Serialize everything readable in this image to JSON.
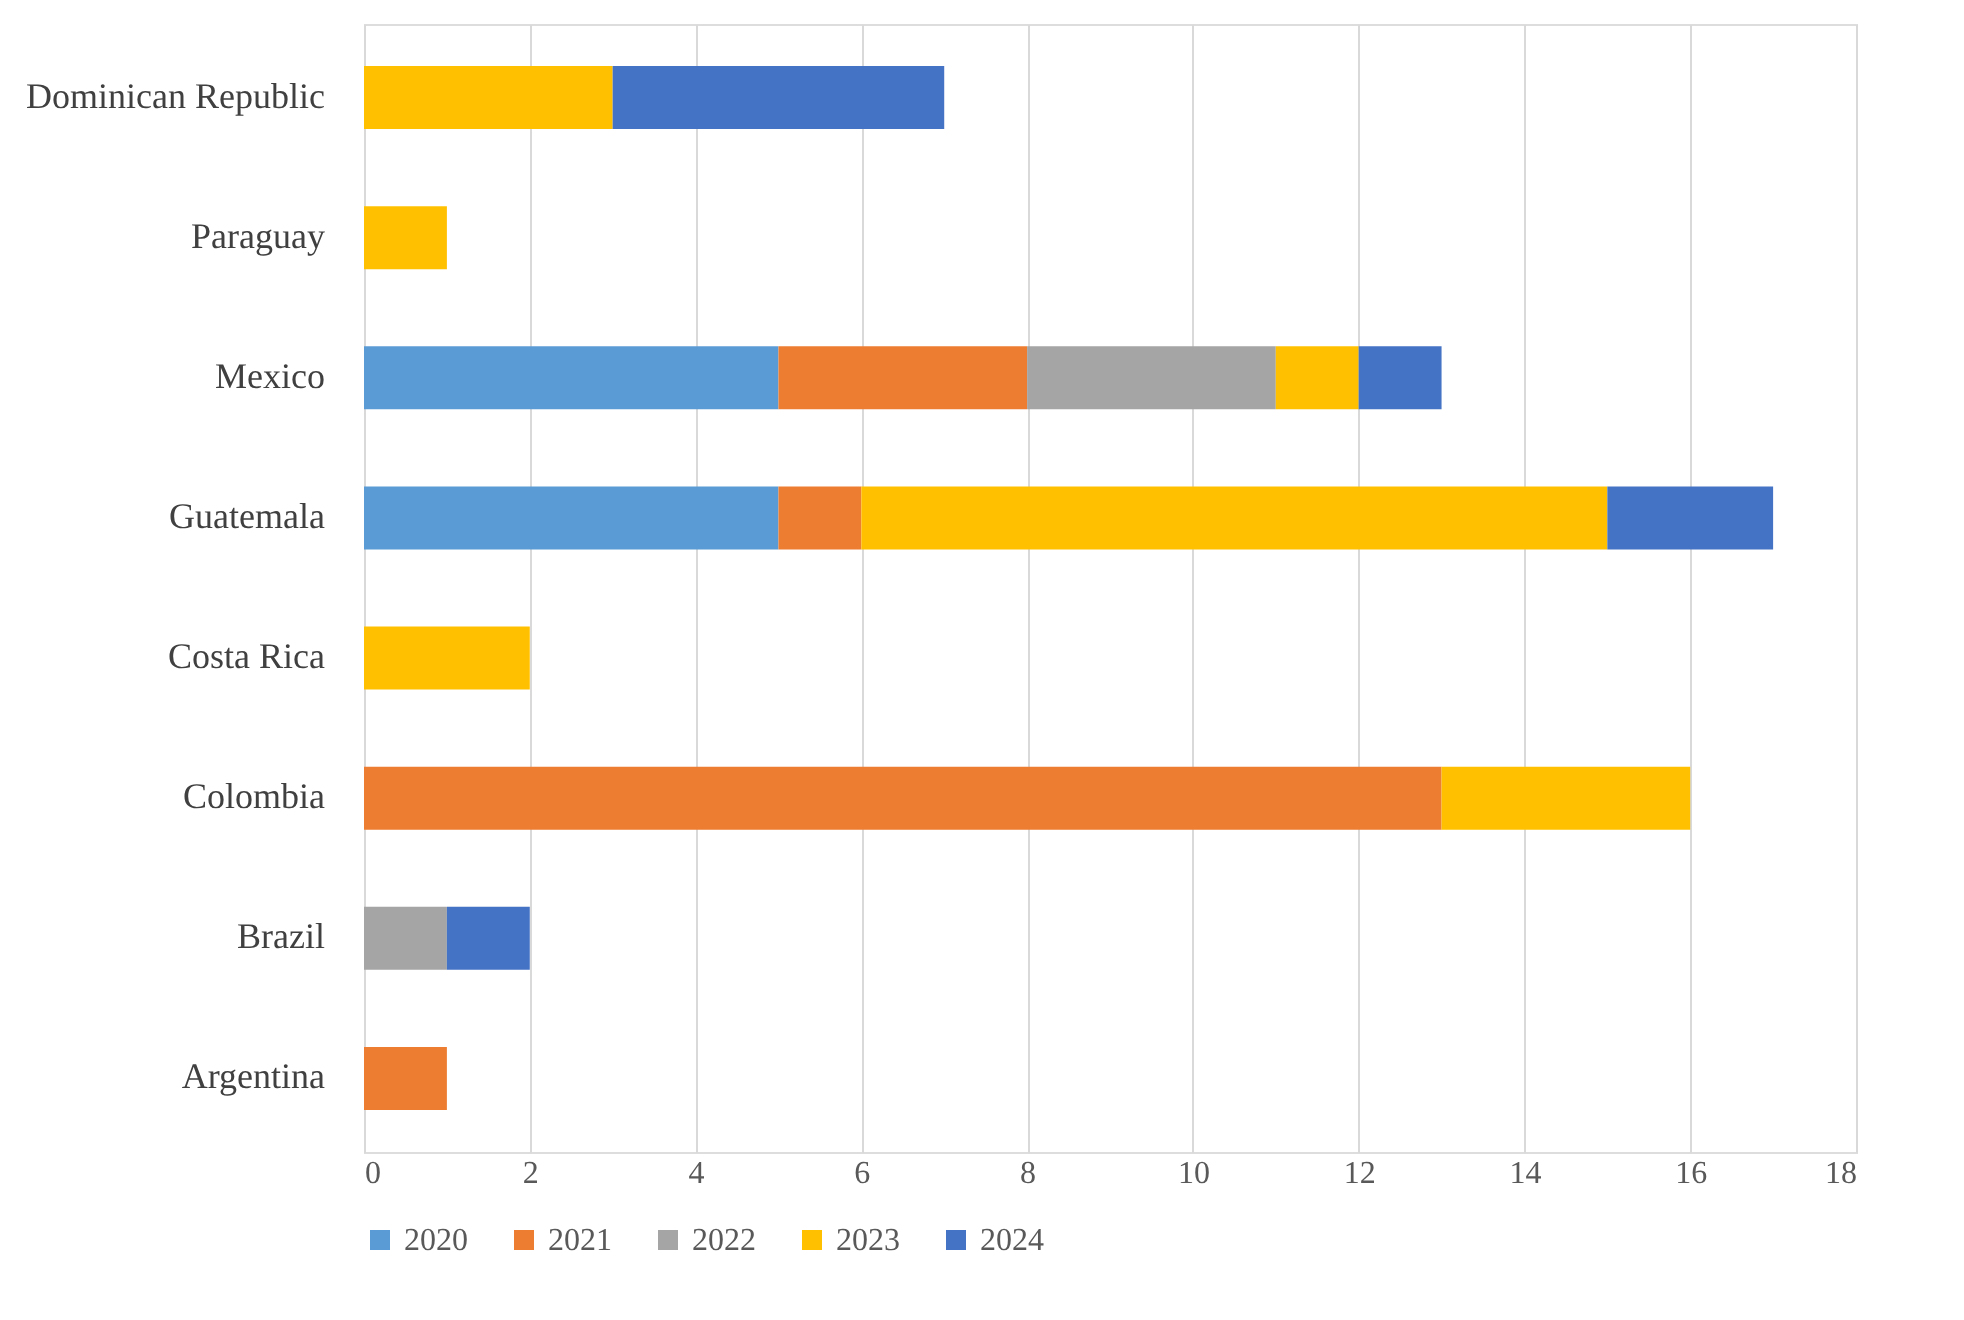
{
  "chart_data": {
    "type": "bar",
    "orientation": "horizontal",
    "stacked": true,
    "categories": [
      "Dominican Republic",
      "Paraguay",
      "Mexico",
      "Guatemala",
      "Costa Rica",
      "Colombia",
      "Brazil",
      "Argentina"
    ],
    "series": [
      {
        "name": "2020",
        "color": "#5b9bd5",
        "values": [
          null,
          null,
          5,
          5,
          null,
          null,
          null,
          null
        ]
      },
      {
        "name": "2021",
        "color": "#ed7d31",
        "values": [
          null,
          null,
          3,
          1,
          null,
          13,
          null,
          1
        ]
      },
      {
        "name": "2022",
        "color": "#a5a5a5",
        "values": [
          null,
          null,
          3,
          null,
          null,
          null,
          1,
          null
        ]
      },
      {
        "name": "2023",
        "color": "#ffc000",
        "values": [
          3,
          1,
          1,
          9,
          2,
          3,
          null,
          null
        ]
      },
      {
        "name": "2024",
        "color": "#4472c4",
        "values": [
          4,
          null,
          1,
          2,
          null,
          null,
          1,
          null
        ]
      }
    ],
    "xlim": [
      0,
      18
    ],
    "xticks": [
      0,
      2,
      4,
      6,
      8,
      10,
      12,
      14,
      16,
      18
    ],
    "grid": "x",
    "legend": "bottom"
  }
}
